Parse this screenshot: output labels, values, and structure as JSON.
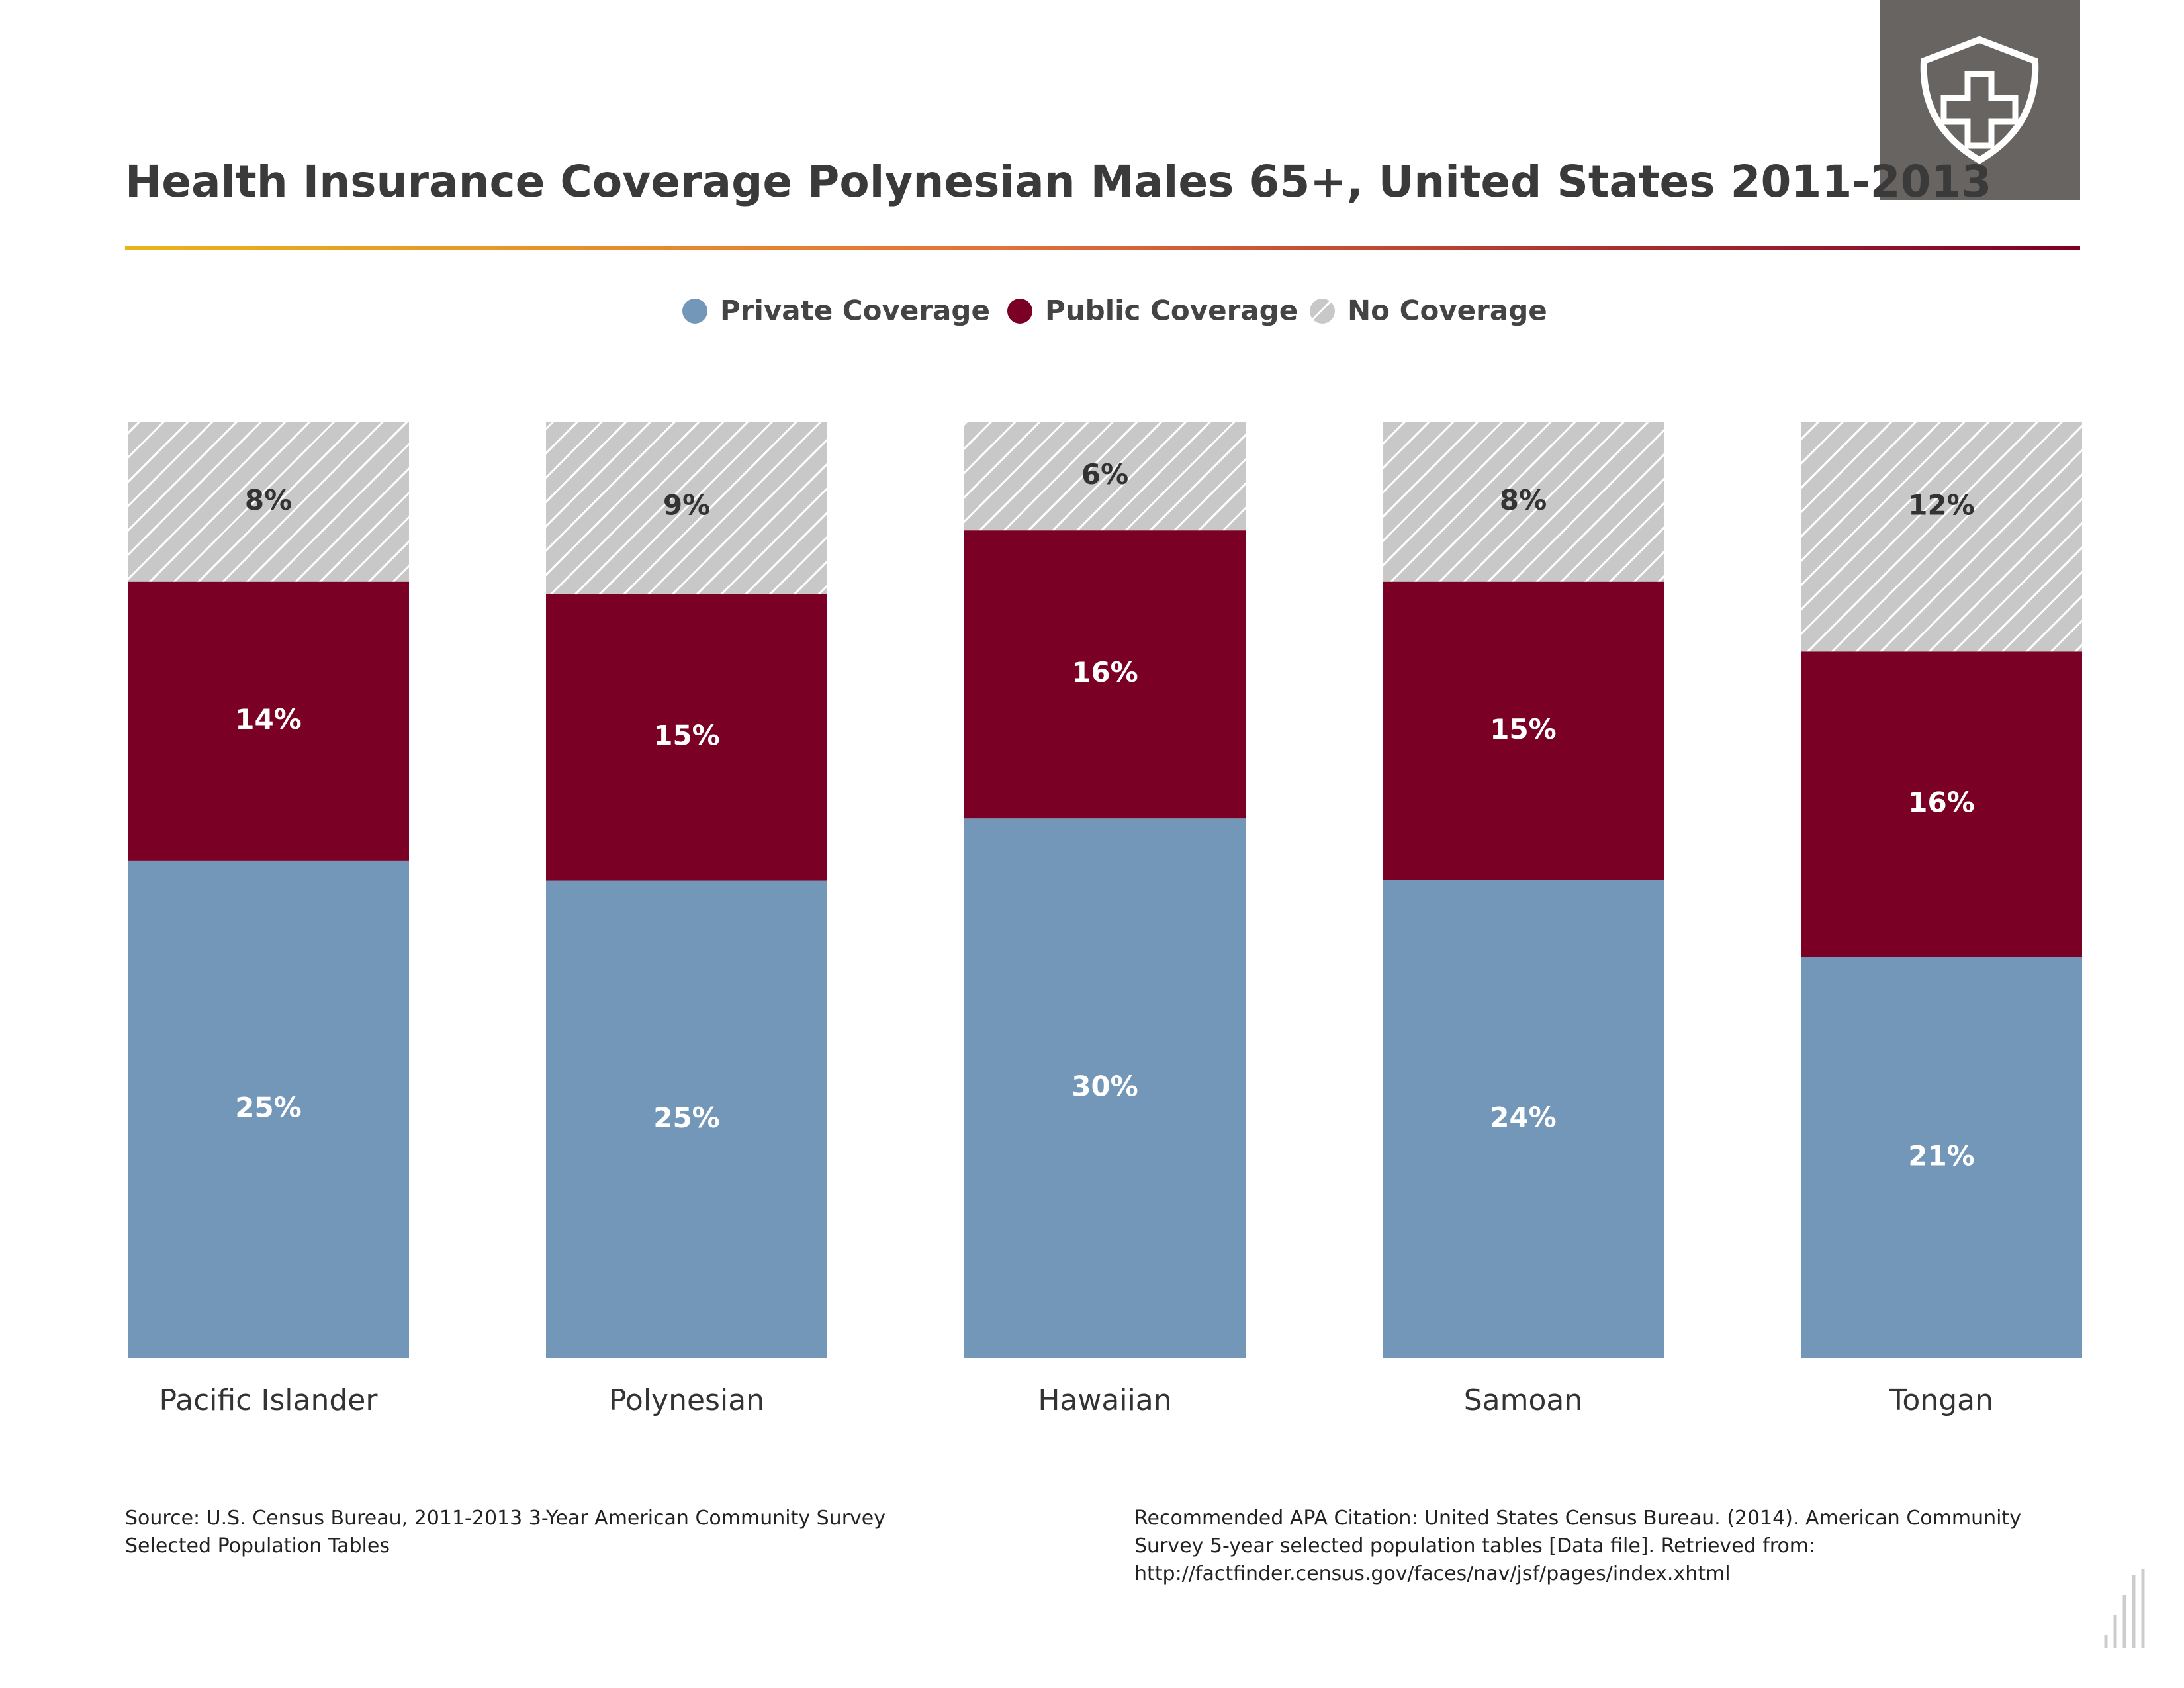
{
  "chart_data": {
    "type": "bar",
    "stacking": "percent",
    "title": "Health Insurance Coverage Polynesian Males 65+, United States 2011-2013",
    "categories": [
      "Pacific Islander",
      "Polynesian",
      "Hawaiian",
      "Samoan",
      "Tongan"
    ],
    "series": [
      {
        "name": "Private Coverage",
        "color": "#7397b8",
        "values": [
          25,
          25,
          30,
          24,
          21
        ],
        "value_labels": [
          "25%",
          "25%",
          "30%",
          "24%",
          "21%"
        ]
      },
      {
        "name": "Public Coverage",
        "color": "#7a0026",
        "values": [
          14,
          15,
          16,
          15,
          16
        ],
        "value_labels": [
          "14%",
          "15%",
          "16%",
          "15%",
          "16%"
        ]
      },
      {
        "name": "No Coverage",
        "color": "#c8c8c8",
        "pattern": "hatch",
        "values": [
          8,
          9,
          6,
          8,
          12
        ],
        "value_labels": [
          "8%",
          "9%",
          "6%",
          "8%",
          "12%"
        ]
      }
    ],
    "legend": "top"
  },
  "footer": {
    "source": "Source: U.S. Census Bureau, 2011-2013 3-Year American Community Survey Selected Population Tables",
    "citation": "Recommended APA Citation: United States Census Bureau. (2014). American Community Survey 5-year selected population tables [Data file]. Retrieved from: http://factfinder.census.gov/faces/nav/jsf/pages/index.xhtml"
  }
}
